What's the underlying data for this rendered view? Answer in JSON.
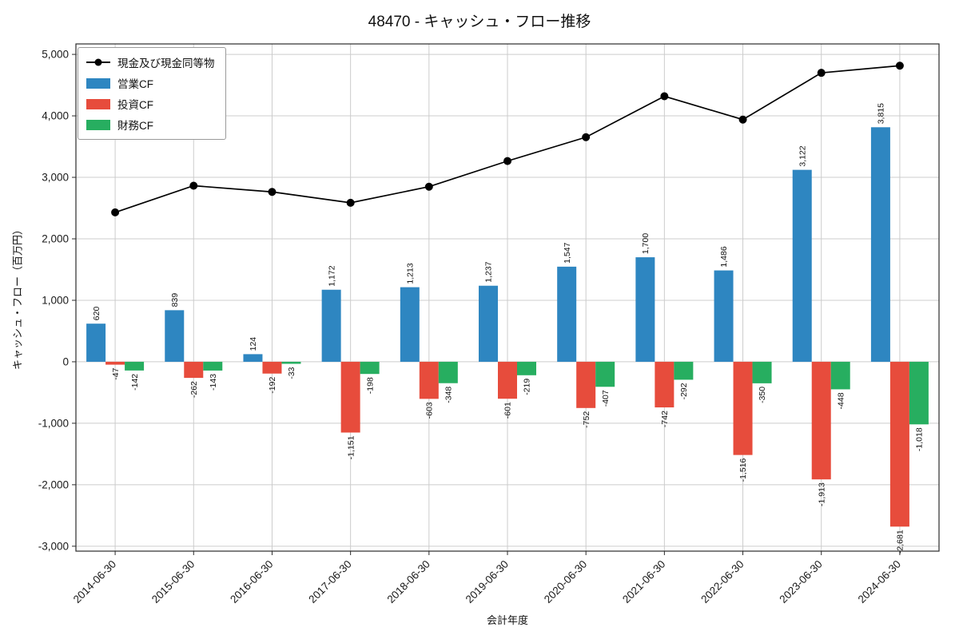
{
  "chart_data": {
    "type": "bar+line",
    "title": "48470 - キャッシュ・フロー推移",
    "xlabel": "会計年度",
    "ylabel": "キャッシュ・フロー（百万円）",
    "ylim": [
      -3000,
      5000
    ],
    "ytick_step": 1000,
    "grid": true,
    "legend_position": "upper-left",
    "bar_value_labels": true,
    "categories": [
      "2014-06-30",
      "2015-06-30",
      "2016-06-30",
      "2017-06-30",
      "2018-06-30",
      "2019-06-30",
      "2020-06-30",
      "2021-06-30",
      "2022-06-30",
      "2023-06-30",
      "2024-06-30"
    ],
    "series": [
      {
        "name": "現金及び現金同等物",
        "slug": "cash-and-equivalents",
        "type": "line",
        "color": "#000000",
        "values": [
          2430,
          2864,
          2763,
          2586,
          2848,
          3265,
          3653,
          4319,
          3939,
          4700,
          4816
        ]
      },
      {
        "name": "営業CF",
        "slug": "operating-cf",
        "type": "bar",
        "color": "#2e86c1",
        "values": [
          620,
          839,
          124,
          1172,
          1213,
          1237,
          1547,
          1700,
          1486,
          3122,
          3815
        ]
      },
      {
        "name": "投資CF",
        "slug": "investing-cf",
        "type": "bar",
        "color": "#e74c3c",
        "values": [
          -47,
          -262,
          -192,
          -1151,
          -603,
          -601,
          -752,
          -742,
          -1516,
          -1913,
          -2681
        ]
      },
      {
        "name": "財務CF",
        "slug": "financing-cf",
        "type": "bar",
        "color": "#27ae60",
        "values": [
          -142,
          -143,
          -33,
          -198,
          -348,
          -219,
          -407,
          -292,
          -350,
          -448,
          -1018
        ]
      }
    ]
  }
}
